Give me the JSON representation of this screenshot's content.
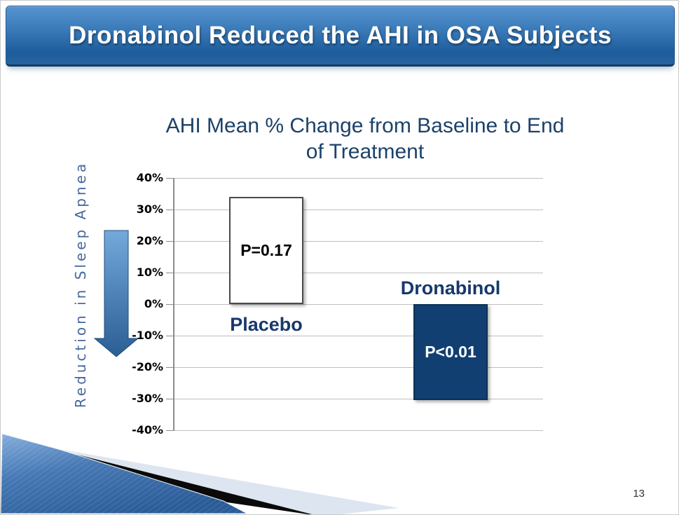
{
  "slide": {
    "title": "Dronabinol Reduced the AHI in OSA Subjects",
    "page_number": "13"
  },
  "side_label": {
    "text": "Reduction in Sleep Apnea",
    "icon": "down-arrow-icon"
  },
  "chart_data": {
    "type": "bar",
    "title": "AHI Mean % Change from Baseline to End of Treatment",
    "title_lines": [
      "AHI Mean % Change from Baseline to End",
      "of Treatment"
    ],
    "categories": [
      "Placebo",
      "Dronabinol"
    ],
    "values": [
      34,
      -30.5
    ],
    "annotations": [
      "P=0.17",
      "P<0.01"
    ],
    "ylabel": "Reduction in Sleep Apnea",
    "ylim": [
      -40,
      40
    ],
    "ytick_step": 10,
    "ytick_labels": [
      "40%",
      "30%",
      "20%",
      "10%",
      "0%",
      "-10%",
      "-20%",
      "-30%",
      "-40%"
    ],
    "grid": true,
    "legend": "none",
    "bar_styles": [
      {
        "fill": "#FFFFFF",
        "border": "#4a4a4a",
        "annotation_color": "#000000"
      },
      {
        "fill": "#113F72",
        "border": "#0d3156",
        "annotation_color": "#FFFFFF"
      }
    ],
    "category_label_color": "#17386B",
    "title_color": "#1C4269"
  },
  "colors": {
    "banner_top": "#5694D0",
    "banner_bottom": "#1D5C9C",
    "accent_navy": "#113F72",
    "side_label_blue": "#47699E",
    "gridline": "#BFBFBF"
  }
}
